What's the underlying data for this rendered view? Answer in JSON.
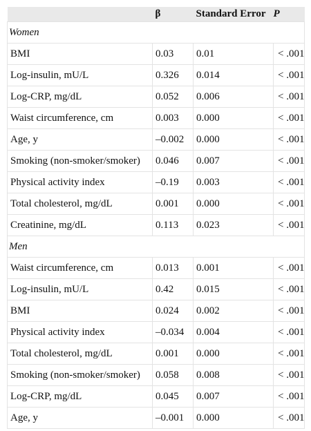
{
  "columns": {
    "label": "",
    "beta": "β",
    "se": "Standard Error",
    "p": "P"
  },
  "sections": [
    {
      "name": "Women",
      "rows": [
        {
          "label": "BMI",
          "beta": "0.03",
          "se": "0.01",
          "p": "< .001"
        },
        {
          "label": "Log-insulin, mU/L",
          "beta": "0.326",
          "se": "0.014",
          "p": "< .001"
        },
        {
          "label": "Log-CRP, mg/dL",
          "beta": "0.052",
          "se": "0.006",
          "p": "< .001"
        },
        {
          "label": "Waist circumference, cm",
          "beta": "0.003",
          "se": "0.000",
          "p": "< .001"
        },
        {
          "label": "Age, y",
          "beta": "–0.002",
          "se": "0.000",
          "p": "< .001"
        },
        {
          "label": "Smoking (non-smoker/smoker)",
          "beta": "0.046",
          "se": "0.007",
          "p": "< .001"
        },
        {
          "label": "Physical activity index",
          "beta": "–0.19",
          "se": "0.003",
          "p": "< .001"
        },
        {
          "label": "Total cholesterol, mg/dL",
          "beta": "0.001",
          "se": "0.000",
          "p": "< .001"
        },
        {
          "label": "Creatinine, mg/dL",
          "beta": "0.113",
          "se": "0.023",
          "p": "< .001"
        }
      ]
    },
    {
      "name": "Men",
      "rows": [
        {
          "label": "Waist circumference, cm",
          "beta": "0.013",
          "se": "0.001",
          "p": "< .001"
        },
        {
          "label": "Log-insulin, mU/L",
          "beta": "0.42",
          "se": "0.015",
          "p": "< .001"
        },
        {
          "label": "BMI",
          "beta": "0.024",
          "se": "0.002",
          "p": "< .001"
        },
        {
          "label": "Physical activity index",
          "beta": "–0.034",
          "se": "0.004",
          "p": "< .001"
        },
        {
          "label": "Total cholesterol, mg/dL",
          "beta": "0.001",
          "se": "0.000",
          "p": "< .001"
        },
        {
          "label": "Smoking (non-smoker/smoker)",
          "beta": "0.058",
          "se": "0.008",
          "p": "< .001"
        },
        {
          "label": "Log-CRP, mg/dL",
          "beta": "0.045",
          "se": "0.007",
          "p": "< .001"
        },
        {
          "label": "Age, y",
          "beta": "–0.001",
          "se": "0.000",
          "p": "< .001"
        }
      ]
    }
  ]
}
